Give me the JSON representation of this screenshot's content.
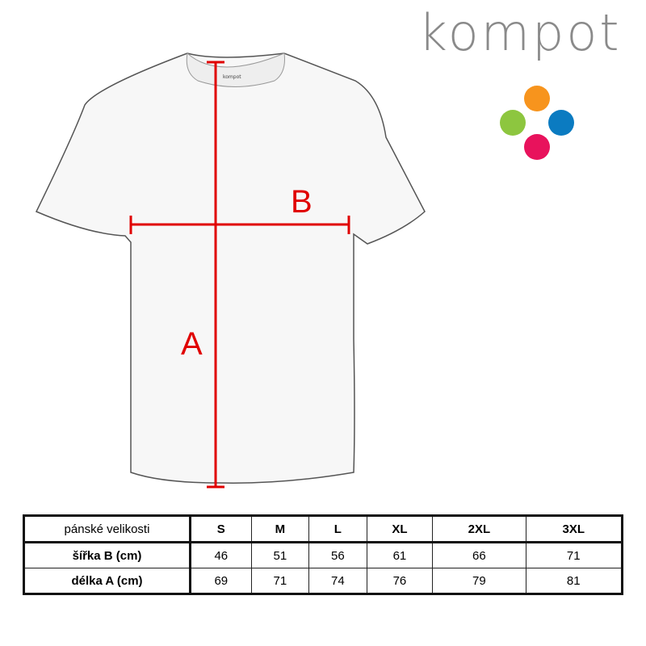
{
  "logo": {
    "text": "kompot",
    "dot_colors": {
      "orange": "#f7941d",
      "green": "#8dc63f",
      "blue": "#0b7bc1",
      "pink": "#e8125c"
    }
  },
  "shirt": {
    "neck_label": "kompot",
    "label_a": "A",
    "label_b": "B",
    "measure_color": "#e00000"
  },
  "table": {
    "header": [
      "pánské velikosti",
      "S",
      "M",
      "L",
      "XL",
      "2XL",
      "3XL"
    ],
    "rows": [
      {
        "label": "šířka B (cm)",
        "values": [
          "46",
          "51",
          "56",
          "61",
          "66",
          "71"
        ]
      },
      {
        "label": "délka A (cm)",
        "values": [
          "69",
          "71",
          "74",
          "76",
          "79",
          "81"
        ]
      }
    ]
  }
}
